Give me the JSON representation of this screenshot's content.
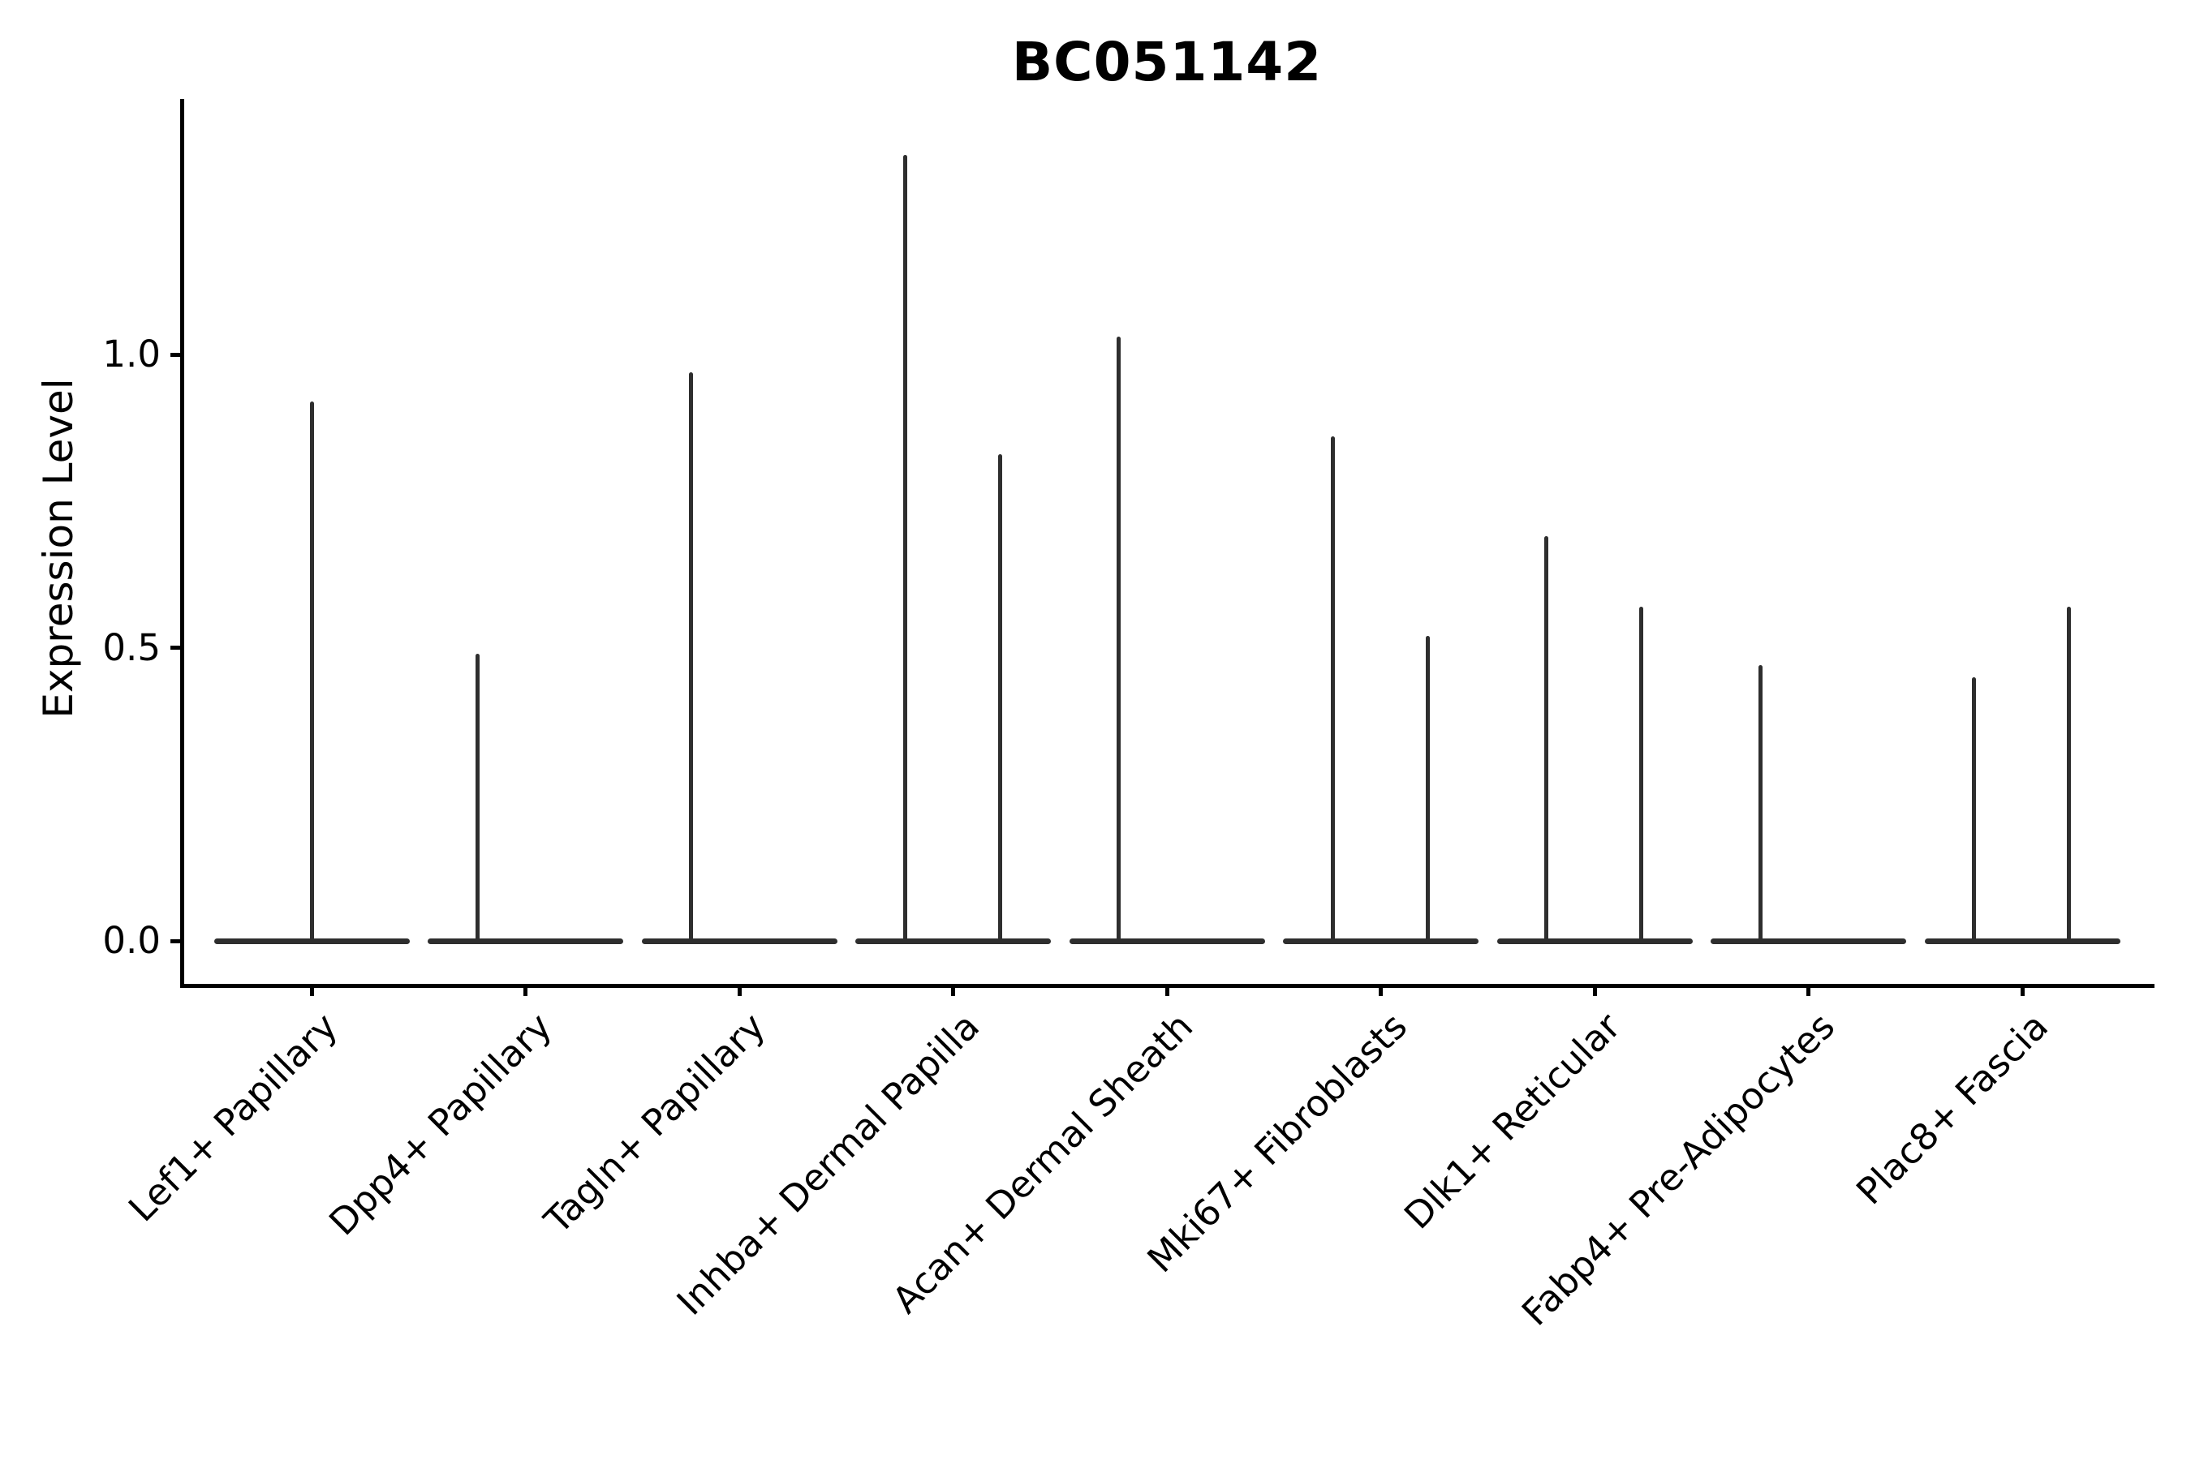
{
  "title": "BC051142",
  "colors": {
    "violin_line": "#2e2e2e",
    "spine": "#000000",
    "text": "#000000",
    "background": "#ffffff"
  },
  "chart_data": {
    "type": "violin",
    "title": "BC051142",
    "xlabel": "",
    "ylabel": "Expression Level",
    "grid": false,
    "legend": false,
    "ylim": [
      -0.073,
      1.434
    ],
    "y_ticks": [
      {
        "label": "0.0",
        "value": 0.0
      },
      {
        "label": "0.5",
        "value": 0.5
      },
      {
        "label": "1.0",
        "value": 1.0
      }
    ],
    "x_tick_rotation_deg": 45,
    "violin_body_width_units": 0.91,
    "note": "Collapsed violins: each category shows a flat body at expression 0 plus thin density spikes reaching the maximum expression values.",
    "categories": [
      {
        "label": "Lef1+ Papillary",
        "spikes": [
          {
            "offset_units": 0.0,
            "max_expression": 0.92
          }
        ]
      },
      {
        "label": "Dpp4+ Papillary",
        "spikes": [
          {
            "offset_units": -0.225,
            "max_expression": 0.49
          }
        ]
      },
      {
        "label": "Tagln+ Papillary",
        "spikes": [
          {
            "offset_units": -0.225,
            "max_expression": 0.97
          }
        ]
      },
      {
        "label": "Inhba+ Dermal Papilla",
        "spikes": [
          {
            "offset_units": -0.225,
            "max_expression": 1.34
          },
          {
            "offset_units": 0.22,
            "max_expression": 0.83
          }
        ]
      },
      {
        "label": "Acan+ Dermal Sheath",
        "spikes": [
          {
            "offset_units": -0.225,
            "max_expression": 1.03
          }
        ]
      },
      {
        "label": "Mki67+ Fibroblasts",
        "spikes": [
          {
            "offset_units": -0.225,
            "max_expression": 0.86
          },
          {
            "offset_units": 0.22,
            "max_expression": 0.52
          }
        ]
      },
      {
        "label": "Dlk1+ Reticular",
        "spikes": [
          {
            "offset_units": -0.225,
            "max_expression": 0.69
          },
          {
            "offset_units": 0.22,
            "max_expression": 0.57
          }
        ]
      },
      {
        "label": "Fabp4+ Pre-Adipocytes",
        "spikes": [
          {
            "offset_units": -0.225,
            "max_expression": 0.47
          }
        ]
      },
      {
        "label": "Plac8+ Fascia",
        "spikes": [
          {
            "offset_units": -0.225,
            "max_expression": 0.45
          },
          {
            "offset_units": 0.22,
            "max_expression": 0.57
          }
        ]
      }
    ]
  }
}
